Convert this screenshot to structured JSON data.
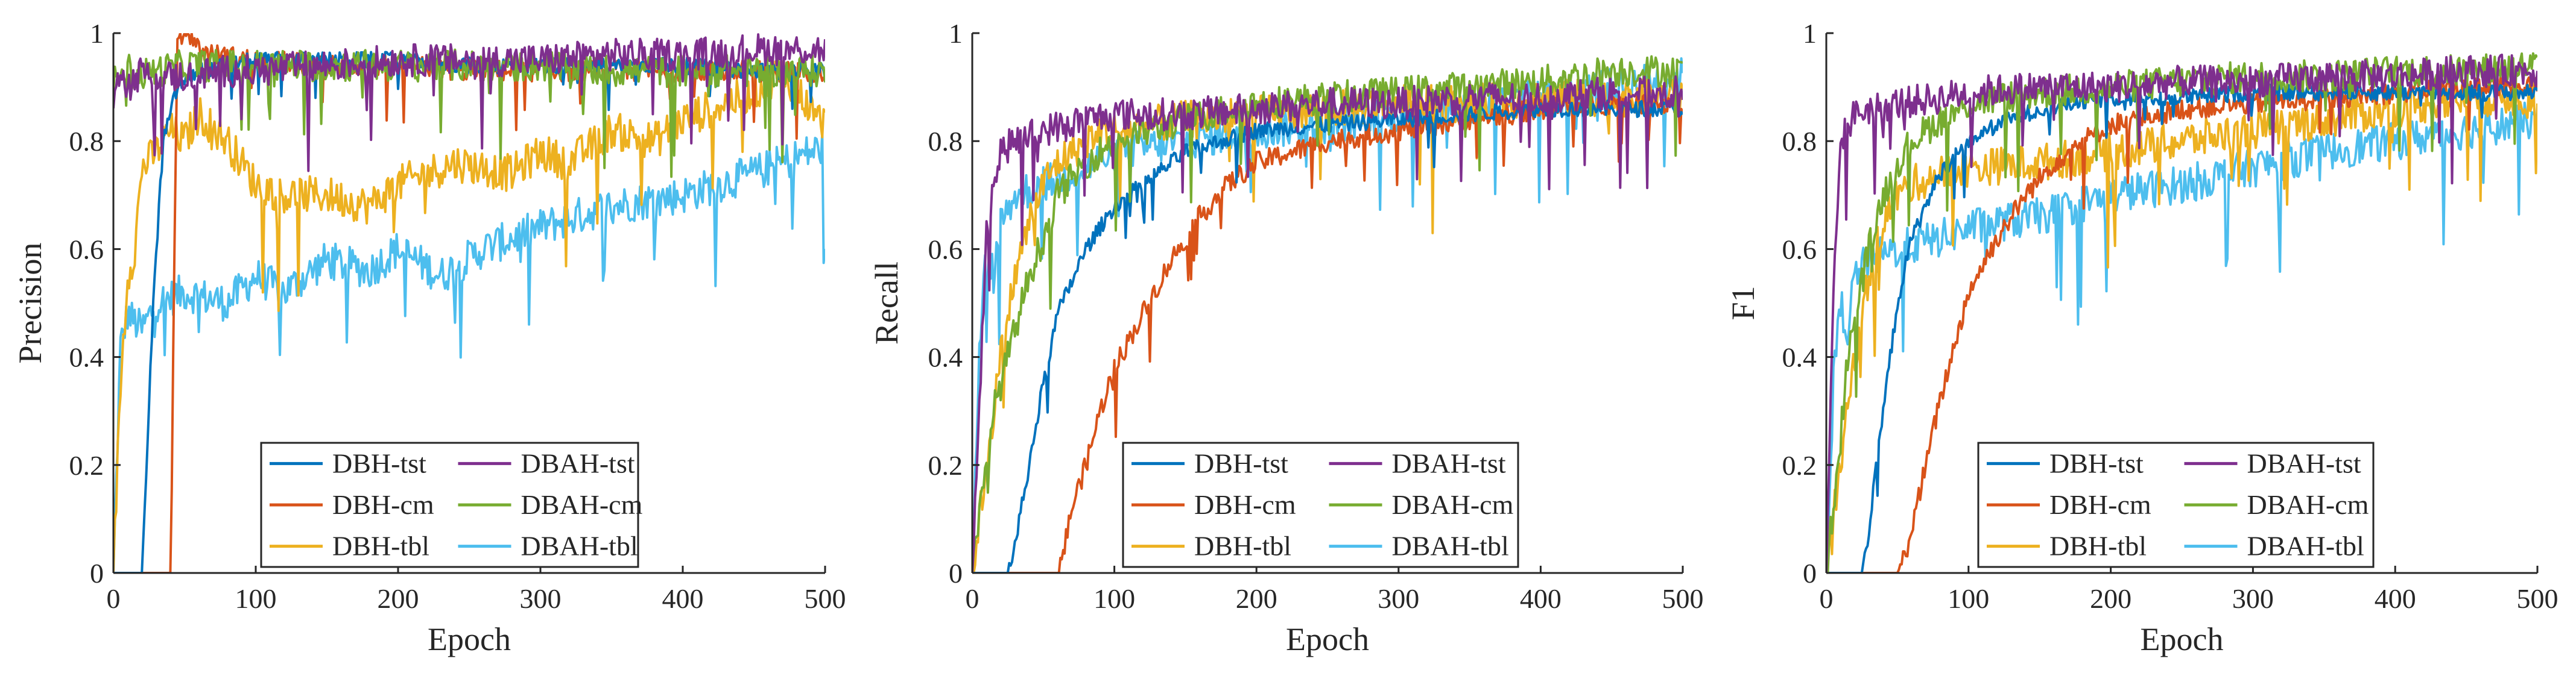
{
  "figure": {
    "description_panels": 3
  },
  "colors": {
    "DBH-tst": "#0072BD",
    "DBH-cm": "#D95319",
    "DBH-tbl": "#EDB120",
    "DBAH-tst": "#7E2F8E",
    "DBAH-cm": "#77AC30",
    "DBAH-tbl": "#4DBEEE",
    "axis": "#262626"
  },
  "chart_data": [
    {
      "type": "line",
      "id": "precision",
      "xlabel": "Epoch",
      "ylabel": "Precision",
      "xlim": [
        0,
        500
      ],
      "ylim": [
        0,
        1
      ],
      "xticks": [
        "0",
        "100",
        "200",
        "300",
        "400",
        "500"
      ],
      "yticks": [
        "0",
        "0.2",
        "0.4",
        "0.6",
        "0.8",
        "1"
      ],
      "legend": {
        "placement": "bottom-center",
        "entries": [
          "DBH-tst",
          "DBAH-tst",
          "DBH-cm",
          "DBAH-cm",
          "DBH-tbl",
          "DBAH-tbl"
        ]
      },
      "series": [
        {
          "name": "DBH-tst",
          "x": [
            0,
            20,
            28,
            35,
            45,
            60,
            80,
            100,
            150,
            200,
            250,
            300,
            350,
            400,
            450,
            500
          ],
          "y": [
            0,
            0,
            0.5,
            0.8,
            0.9,
            0.93,
            0.94,
            0.95,
            0.95,
            0.95,
            0.94,
            0.94,
            0.94,
            0.94,
            0.93,
            0.93
          ]
        },
        {
          "name": "DBAH-tst",
          "x": [
            0,
            5,
            10,
            20,
            30,
            50,
            80,
            100,
            150,
            200,
            250,
            300,
            350,
            400,
            450,
            500
          ],
          "y": [
            0.85,
            0.95,
            0.9,
            0.93,
            0.92,
            0.92,
            0.93,
            0.93,
            0.94,
            0.95,
            0.95,
            0.95,
            0.96,
            0.96,
            0.97,
            0.97
          ]
        },
        {
          "name": "DBH-cm",
          "x": [
            0,
            30,
            40,
            45,
            50,
            55,
            60,
            70,
            100,
            150,
            200,
            250,
            300,
            350,
            400,
            450,
            500
          ],
          "y": [
            0,
            0,
            0,
            1,
            1,
            1,
            0.97,
            0.96,
            0.95,
            0.94,
            0.94,
            0.93,
            0.93,
            0.93,
            0.93,
            0.93,
            0.93
          ]
        },
        {
          "name": "DBAH-cm",
          "x": [
            0,
            5,
            15,
            30,
            50,
            100,
            150,
            200,
            250,
            300,
            350,
            400,
            450,
            500
          ],
          "y": [
            0.9,
            0.95,
            0.92,
            0.93,
            0.94,
            0.94,
            0.94,
            0.94,
            0.94,
            0.94,
            0.93,
            0.93,
            0.93,
            0.93
          ]
        },
        {
          "name": "DBH-tbl",
          "x": [
            0,
            5,
            10,
            15,
            20,
            30,
            40,
            50,
            60,
            80,
            100,
            120,
            150,
            180,
            200,
            240,
            280,
            300,
            320,
            350,
            380,
            400,
            420,
            450,
            470,
            490,
            500
          ],
          "y": [
            0,
            0.35,
            0.55,
            0.6,
            0.75,
            0.78,
            0.82,
            0.8,
            0.85,
            0.8,
            0.72,
            0.7,
            0.7,
            0.68,
            0.72,
            0.76,
            0.74,
            0.78,
            0.76,
            0.82,
            0.8,
            0.84,
            0.86,
            0.89,
            0.93,
            0.86,
            0.83
          ]
        },
        {
          "name": "DBAH-tbl",
          "x": [
            0,
            5,
            10,
            20,
            30,
            50,
            80,
            100,
            120,
            150,
            180,
            200,
            230,
            260,
            300,
            350,
            400,
            450,
            500
          ],
          "y": [
            0,
            0.42,
            0.48,
            0.45,
            0.5,
            0.52,
            0.5,
            0.55,
            0.52,
            0.58,
            0.56,
            0.6,
            0.55,
            0.6,
            0.64,
            0.68,
            0.7,
            0.74,
            0.79
          ]
        }
      ]
    },
    {
      "type": "line",
      "id": "recall",
      "xlabel": "Epoch",
      "ylabel": "Recall",
      "xlim": [
        0,
        500
      ],
      "ylim": [
        0,
        1
      ],
      "xticks": [
        "0",
        "100",
        "200",
        "300",
        "400",
        "500"
      ],
      "yticks": [
        "0",
        "0.2",
        "0.4",
        "0.6",
        "0.8",
        "1"
      ],
      "legend": {
        "placement": "bottom-right",
        "entries": [
          "DBH-tst",
          "DBAH-tst",
          "DBH-cm",
          "DBAH-cm",
          "DBH-tbl",
          "DBAH-tbl"
        ]
      },
      "series": [
        {
          "name": "DBH-tst",
          "x": [
            0,
            25,
            30,
            40,
            50,
            60,
            80,
            100,
            120,
            150,
            200,
            250,
            300,
            350,
            400,
            450,
            500
          ],
          "y": [
            0,
            0,
            0.05,
            0.2,
            0.35,
            0.48,
            0.6,
            0.68,
            0.72,
            0.78,
            0.82,
            0.83,
            0.84,
            0.85,
            0.86,
            0.86,
            0.86
          ]
        },
        {
          "name": "DBAH-tst",
          "x": [
            0,
            5,
            10,
            20,
            30,
            50,
            80,
            100,
            150,
            200,
            250,
            300,
            350,
            400,
            450,
            500
          ],
          "y": [
            0,
            0.3,
            0.65,
            0.78,
            0.8,
            0.82,
            0.84,
            0.85,
            0.85,
            0.86,
            0.87,
            0.87,
            0.88,
            0.88,
            0.89,
            0.89
          ]
        },
        {
          "name": "DBH-cm",
          "x": [
            0,
            60,
            65,
            70,
            80,
            90,
            100,
            120,
            140,
            160,
            180,
            200,
            250,
            300,
            350,
            400,
            450,
            500
          ],
          "y": [
            0,
            0,
            0.05,
            0.12,
            0.2,
            0.3,
            0.38,
            0.48,
            0.58,
            0.66,
            0.72,
            0.76,
            0.8,
            0.82,
            0.84,
            0.86,
            0.87,
            0.87
          ]
        },
        {
          "name": "DBAH-cm",
          "x": [
            0,
            10,
            15,
            20,
            30,
            40,
            50,
            60,
            80,
            100,
            150,
            200,
            250,
            300,
            350,
            400,
            450,
            500
          ],
          "y": [
            0,
            0.2,
            0.3,
            0.35,
            0.45,
            0.55,
            0.62,
            0.7,
            0.76,
            0.8,
            0.84,
            0.87,
            0.88,
            0.89,
            0.9,
            0.91,
            0.93,
            0.93
          ]
        },
        {
          "name": "DBH-tbl",
          "x": [
            0,
            10,
            20,
            30,
            40,
            50,
            60,
            80,
            100,
            150,
            200,
            250,
            300,
            350,
            400,
            450,
            500
          ],
          "y": [
            0,
            0.2,
            0.4,
            0.55,
            0.65,
            0.72,
            0.76,
            0.8,
            0.82,
            0.84,
            0.85,
            0.86,
            0.87,
            0.87,
            0.88,
            0.88,
            0.88
          ]
        },
        {
          "name": "DBAH-tbl",
          "x": [
            0,
            5,
            10,
            15,
            20,
            30,
            50,
            80,
            100,
            150,
            200,
            250,
            300,
            350,
            400,
            450,
            500
          ],
          "y": [
            0,
            0.4,
            0.6,
            0.55,
            0.65,
            0.7,
            0.72,
            0.75,
            0.78,
            0.8,
            0.82,
            0.83,
            0.85,
            0.86,
            0.88,
            0.9,
            0.92
          ]
        }
      ]
    },
    {
      "type": "line",
      "id": "f1",
      "xlabel": "Epoch",
      "ylabel": "F1",
      "xlim": [
        0,
        500
      ],
      "ylim": [
        0,
        1
      ],
      "xticks": [
        "0",
        "100",
        "200",
        "300",
        "400",
        "500"
      ],
      "yticks": [
        "0",
        "0.2",
        "0.4",
        "0.6",
        "0.8",
        "1"
      ],
      "legend": {
        "placement": "bottom-right",
        "entries": [
          "DBH-tst",
          "DBAH-tst",
          "DBH-cm",
          "DBAH-cm",
          "DBH-tbl",
          "DBAH-tbl"
        ]
      },
      "series": [
        {
          "name": "DBH-tst",
          "x": [
            0,
            25,
            30,
            40,
            50,
            60,
            80,
            100,
            120,
            150,
            200,
            250,
            300,
            350,
            400,
            450,
            500
          ],
          "y": [
            0,
            0,
            0.08,
            0.3,
            0.5,
            0.62,
            0.74,
            0.8,
            0.83,
            0.86,
            0.88,
            0.88,
            0.89,
            0.89,
            0.89,
            0.89,
            0.89
          ]
        },
        {
          "name": "DBAH-tst",
          "x": [
            0,
            5,
            10,
            20,
            30,
            50,
            80,
            100,
            150,
            200,
            250,
            300,
            350,
            400,
            450,
            500
          ],
          "y": [
            0,
            0.5,
            0.8,
            0.85,
            0.86,
            0.87,
            0.88,
            0.89,
            0.9,
            0.9,
            0.91,
            0.91,
            0.92,
            0.92,
            0.93,
            0.93
          ]
        },
        {
          "name": "DBH-cm",
          "x": [
            0,
            50,
            55,
            60,
            70,
            80,
            90,
            100,
            120,
            140,
            160,
            180,
            200,
            250,
            300,
            350,
            400,
            450,
            500
          ],
          "y": [
            0,
            0,
            0.03,
            0.08,
            0.2,
            0.32,
            0.42,
            0.52,
            0.62,
            0.7,
            0.76,
            0.8,
            0.83,
            0.86,
            0.87,
            0.88,
            0.89,
            0.9,
            0.9
          ]
        },
        {
          "name": "DBAH-cm",
          "x": [
            0,
            10,
            15,
            20,
            30,
            40,
            50,
            60,
            80,
            100,
            150,
            200,
            250,
            300,
            350,
            400,
            450,
            500
          ],
          "y": [
            0,
            0.25,
            0.4,
            0.48,
            0.6,
            0.7,
            0.76,
            0.8,
            0.84,
            0.87,
            0.89,
            0.9,
            0.91,
            0.92,
            0.92,
            0.93,
            0.93,
            0.94
          ]
        },
        {
          "name": "DBH-tbl",
          "x": [
            0,
            10,
            20,
            30,
            40,
            50,
            60,
            80,
            100,
            150,
            200,
            250,
            300,
            350,
            400,
            450,
            500
          ],
          "y": [
            0,
            0.2,
            0.4,
            0.55,
            0.65,
            0.7,
            0.72,
            0.74,
            0.75,
            0.76,
            0.78,
            0.8,
            0.82,
            0.84,
            0.86,
            0.88,
            0.88
          ]
        },
        {
          "name": "DBAH-tbl",
          "x": [
            0,
            5,
            10,
            15,
            20,
            30,
            50,
            80,
            100,
            150,
            200,
            250,
            300,
            350,
            400,
            450,
            500
          ],
          "y": [
            0,
            0.35,
            0.5,
            0.45,
            0.55,
            0.58,
            0.6,
            0.62,
            0.64,
            0.66,
            0.7,
            0.72,
            0.75,
            0.78,
            0.8,
            0.82,
            0.84
          ]
        }
      ]
    }
  ]
}
